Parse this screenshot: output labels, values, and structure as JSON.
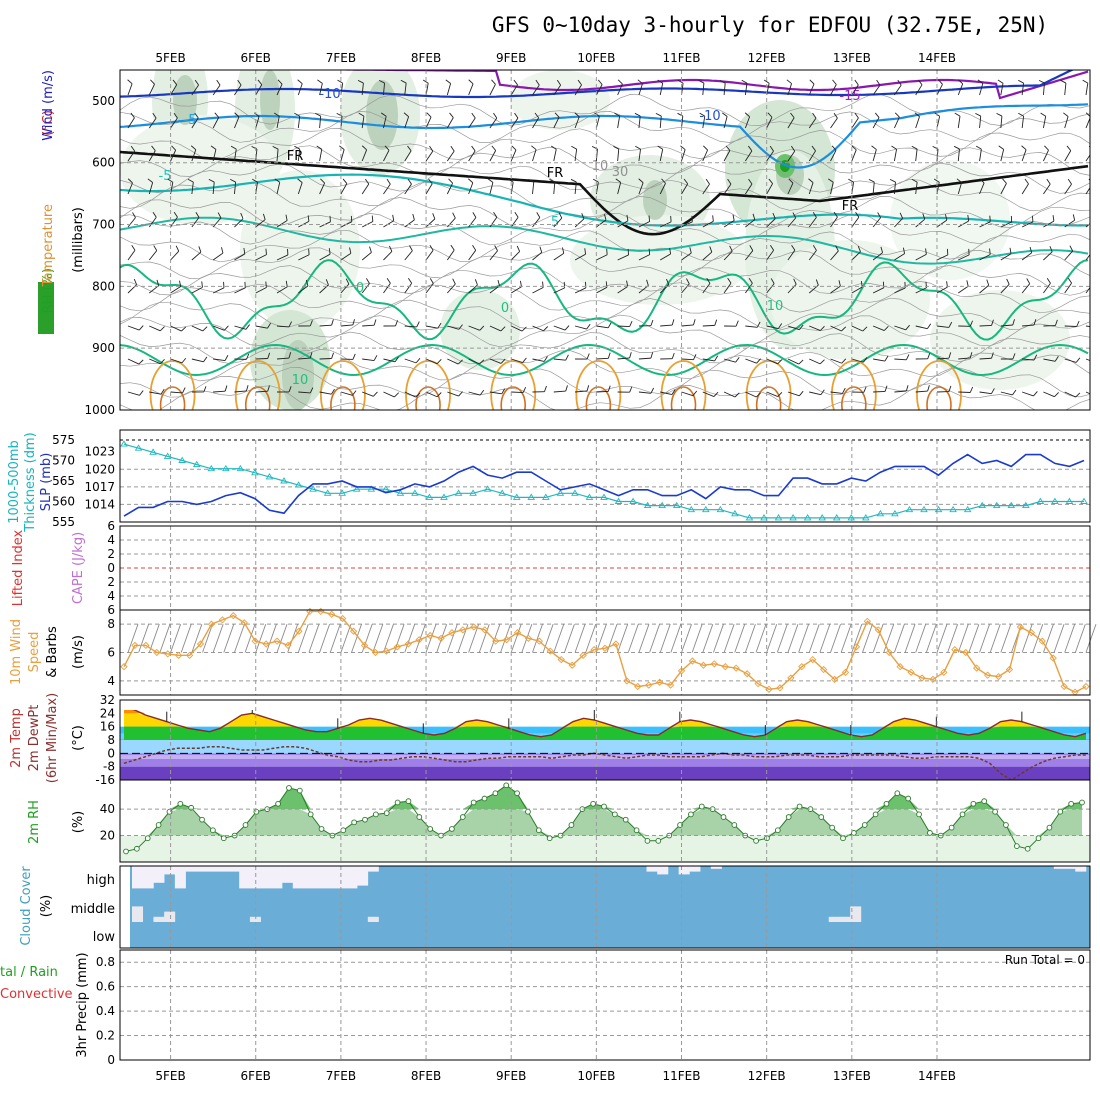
{
  "title": "GFS 0~10day 3-hourly for EDFOU (32.75E, 25N)",
  "chart_data": [
    {
      "type": "contour",
      "panel": "upper-air",
      "x_ticks": [
        "5FEB",
        "6FEB",
        "7FEB",
        "8FEB",
        "9FEB",
        "10FEB",
        "11FEB",
        "12FEB",
        "13FEB",
        "14FEB"
      ],
      "y_ticks": [
        "500",
        "600",
        "700",
        "800",
        "900",
        "1000"
      ],
      "ylim": [
        450,
        1000
      ],
      "ylabel_parts": [
        {
          "text": "RH (%)",
          "color": "#20a020"
        },
        {
          "text": "Temperature",
          "color": "#e09030"
        },
        {
          "text": "(°C)",
          "color": "#d02020"
        },
        {
          "text": "Wind (m/s)",
          "color": "#2020c0"
        }
      ],
      "ylabel_sub": "(millibars)",
      "rh_levels": [
        10,
        30,
        50,
        70,
        90
      ],
      "isotherm_labels": [
        {
          "text": "-15",
          "color": "#a020c0"
        },
        {
          "text": "-10",
          "color": "#2050d0"
        },
        {
          "text": "-10",
          "color": "#2050d0"
        },
        {
          "text": "-5",
          "color": "#20a0e0"
        },
        {
          "text": "-5",
          "color": "#20c0c0"
        },
        {
          "text": "5",
          "color": "#20c0c0"
        },
        {
          "text": "0",
          "color": "#20c080"
        },
        {
          "text": "0",
          "color": "#20c080"
        },
        {
          "text": "10",
          "color": "#20c080"
        },
        {
          "text": "10",
          "color": "#20c080"
        },
        {
          "text": "FR",
          "color": "#000000"
        },
        {
          "text": "FR",
          "color": "#000000"
        },
        {
          "text": "FR",
          "color": "#000000"
        },
        {
          "text": "30",
          "color": "#909090"
        },
        {
          "text": "10",
          "color": "#909090"
        }
      ]
    },
    {
      "type": "line",
      "panel": "thickness-slp",
      "ylabel_left": "1000-500mb Thickness (dm)",
      "ylabel_right": "SLP (mb)",
      "left_ticks": [
        "575",
        "570",
        "565",
        "560",
        "555"
      ],
      "right_ticks": [
        "1023",
        "1020",
        "1017",
        "1014"
      ],
      "thickness_dm": [
        574,
        573,
        572,
        571,
        570,
        569,
        568,
        568,
        568,
        567,
        566,
        565,
        564,
        563,
        562,
        562,
        563,
        563,
        563,
        562,
        562,
        561,
        561,
        562,
        562,
        563,
        562,
        561,
        561,
        561,
        562,
        562,
        561,
        561,
        560,
        560,
        559,
        559,
        559,
        558,
        558,
        558,
        557,
        556,
        556,
        556,
        556,
        556,
        556,
        556,
        556,
        556,
        557,
        557,
        558,
        558,
        558,
        558,
        558,
        559,
        559,
        559,
        559,
        560,
        560,
        560,
        560
      ],
      "slp_mb": [
        1012,
        1013.5,
        1013.5,
        1014.5,
        1014.5,
        1014,
        1014.5,
        1015.5,
        1016,
        1015,
        1013,
        1012.5,
        1015.5,
        1017.5,
        1017.5,
        1018,
        1017,
        1017,
        1016,
        1016.5,
        1017.5,
        1017,
        1018,
        1019.5,
        1020.5,
        1019,
        1018.5,
        1019.5,
        1019.5,
        1018,
        1016.5,
        1017,
        1017.5,
        1016.5,
        1015.5,
        1016.5,
        1016.5,
        1015.5,
        1015.5,
        1016.5,
        1015,
        1017,
        1016.5,
        1016.5,
        1015.5,
        1015.5,
        1018.5,
        1018.5,
        1017.5,
        1017.5,
        1018.5,
        1018,
        1019.5,
        1020.5,
        1020.5,
        1020.5,
        1019,
        1021,
        1022.5,
        1021,
        1021.5,
        1020.5,
        1022.5,
        1022.5,
        1021,
        1020.5,
        1021.5
      ]
    },
    {
      "type": "line",
      "panel": "lifted-index-cape",
      "ylabel": "Lifted Index",
      "ylabel2": "CAPE (J/kg)",
      "ticks": [
        "-6",
        "-4",
        "-2",
        "0",
        "2",
        "4",
        "6"
      ],
      "ylim": [
        -6,
        6
      ],
      "zero_line": 0
    },
    {
      "type": "line",
      "panel": "wind-10m",
      "ylabel": "10m Wind",
      "ylabel2": "Speed",
      "ylabel3": "& Barbs",
      "units": "(m/s)",
      "ticks": [
        "8",
        "6",
        "4"
      ],
      "ylim": [
        3,
        9
      ],
      "speed_ms": [
        5.0,
        6.5,
        6.5,
        6.0,
        5.9,
        5.8,
        5.8,
        6.6,
        8.0,
        8.3,
        8.6,
        8.1,
        6.8,
        6.6,
        6.8,
        6.5,
        7.5,
        8.9,
        8.9,
        8.7,
        8.4,
        7.5,
        6.5,
        6.0,
        6.1,
        6.4,
        6.6,
        6.9,
        7.2,
        7.0,
        7.4,
        7.6,
        7.8,
        7.6,
        6.8,
        6.9,
        7.4,
        7.0,
        6.8,
        6.1,
        5.5,
        5.1,
        5.8,
        6.2,
        6.3,
        6.6,
        4.0,
        3.6,
        3.7,
        3.9,
        3.7,
        4.7,
        5.4,
        5.1,
        5.2,
        5.0,
        4.9,
        4.5,
        3.8,
        3.4,
        3.5,
        4.2,
        5.0,
        5.5,
        4.8,
        4.1,
        4.6,
        6.4,
        8.2,
        7.6,
        6.0,
        5.0,
        4.6,
        4.2,
        4.1,
        4.6,
        6.2,
        6.0,
        4.9,
        4.4,
        4.3,
        4.8,
        7.8,
        7.4,
        6.8,
        5.6,
        3.6,
        3.2,
        3.6
      ],
      "ref_line_ms": 6.0
    },
    {
      "type": "area",
      "panel": "temp-dewpoint",
      "ylabel": "2m Temp",
      "ylabel2": "2m DewPt",
      "ylabel3": "(6hr Min/Max)",
      "units": "(°C)",
      "ticks": [
        "32",
        "24",
        "16",
        "8",
        "0",
        "-8",
        "-16"
      ],
      "ylim": [
        -16,
        32
      ],
      "temp_c": [
        28,
        26,
        23,
        21,
        19,
        17,
        15,
        14,
        13,
        15,
        19,
        23,
        24,
        22,
        20,
        18,
        16,
        14,
        13,
        13,
        15,
        17,
        20,
        21,
        20,
        18,
        16,
        14,
        12,
        11,
        12,
        15,
        19,
        20,
        19,
        17,
        15,
        13,
        11,
        10,
        11,
        15,
        19,
        21,
        20,
        18,
        16,
        14,
        12,
        11,
        11,
        15,
        19,
        20,
        19,
        17,
        15,
        13,
        11,
        10,
        11,
        15,
        19,
        20,
        19,
        17,
        15,
        13,
        11,
        10,
        11,
        15,
        19,
        21,
        20,
        18,
        16,
        14,
        12,
        11,
        12,
        15,
        19,
        20,
        19,
        17,
        15,
        13,
        11,
        10,
        12
      ],
      "dewpoint_c": [
        -6,
        -4,
        -2,
        0,
        2,
        3,
        3,
        3,
        4,
        4,
        3,
        2,
        2,
        2,
        3,
        4,
        4,
        3,
        1,
        -1,
        -2,
        -4,
        -5,
        -5,
        -4,
        -4,
        -3,
        -2,
        -2,
        -3,
        -4,
        -5,
        -5,
        -4,
        -3,
        -3,
        -2,
        -2,
        -2,
        -2,
        -3,
        -2,
        -1,
        -1,
        0,
        -1,
        -2,
        -3,
        -2,
        -1,
        -1,
        -2,
        -2,
        -2,
        -2,
        -1,
        0,
        -1,
        -1,
        -2,
        -2,
        -2,
        -1,
        -1,
        -1,
        -2,
        -2,
        -2,
        -1,
        -1,
        -1,
        -1,
        -1,
        -2,
        -3,
        -3,
        -2,
        -2,
        -2,
        -2,
        -3,
        -6,
        -12,
        -16,
        -12,
        -8,
        -5,
        -3,
        -2,
        -1,
        -1
      ]
    },
    {
      "type": "area",
      "panel": "relative-humidity",
      "ylabel": "2m RH",
      "units": "(%)",
      "ticks": [
        "40",
        "20"
      ],
      "ylim": [
        0,
        62
      ],
      "rh_pct": [
        8,
        10,
        18,
        28,
        38,
        44,
        41,
        32,
        24,
        18,
        20,
        28,
        38,
        40,
        44,
        56,
        54,
        36,
        25,
        20,
        24,
        30,
        32,
        36,
        37,
        45,
        46,
        34,
        25,
        20,
        25,
        34,
        45,
        48,
        52,
        58,
        52,
        38,
        24,
        18,
        20,
        28,
        40,
        44,
        42,
        36,
        32,
        24,
        16,
        16,
        20,
        28,
        36,
        42,
        40,
        34,
        28,
        20,
        16,
        18,
        24,
        34,
        42,
        40,
        34,
        26,
        18,
        22,
        28,
        36,
        44,
        52,
        48,
        36,
        22,
        20,
        26,
        36,
        44,
        46,
        38,
        28,
        12,
        10,
        18,
        26,
        38,
        44,
        45
      ]
    },
    {
      "type": "bar",
      "panel": "cloud-cover",
      "ylabel": "Cloud Cover",
      "units": "(%)",
      "levels": [
        "high",
        "middle",
        "low"
      ],
      "high_pct": [
        80,
        80,
        60,
        30,
        80,
        20,
        20,
        20,
        20,
        20,
        80,
        80,
        80,
        80,
        60,
        80,
        80,
        80,
        80,
        80,
        80,
        70,
        20,
        0,
        0,
        0,
        0,
        0,
        0,
        0,
        0,
        0,
        0,
        0,
        0,
        0,
        0,
        0,
        0,
        0,
        0,
        0,
        0,
        0,
        0,
        0,
        0,
        0,
        20,
        30,
        0,
        30,
        20,
        0,
        10,
        0,
        0,
        0,
        0,
        0,
        0,
        0,
        0,
        0,
        0,
        0,
        0,
        0,
        0,
        0,
        0,
        0,
        0,
        0,
        0,
        0,
        0,
        0,
        0,
        0,
        0,
        0,
        0,
        0,
        0,
        0,
        10,
        10,
        20
      ],
      "middle_pct": [
        60,
        0,
        20,
        40,
        0,
        0,
        0,
        0,
        0,
        0,
        0,
        20,
        0,
        0,
        0,
        0,
        0,
        0,
        0,
        0,
        0,
        0,
        20,
        0,
        0,
        0,
        0,
        0,
        0,
        0,
        0,
        0,
        0,
        0,
        0,
        0,
        0,
        0,
        0,
        0,
        0,
        0,
        0,
        0,
        0,
        0,
        0,
        0,
        0,
        0,
        0,
        0,
        0,
        0,
        0,
        0,
        0,
        0,
        0,
        0,
        0,
        0,
        0,
        0,
        0,
        20,
        20,
        60,
        0,
        0,
        0,
        0,
        0,
        0,
        0,
        0,
        0,
        0,
        0,
        0,
        0,
        0,
        0,
        0,
        0,
        0,
        0,
        0,
        0
      ],
      "low_pct": []
    },
    {
      "type": "bar",
      "panel": "precipitation",
      "ylabel": "3hr Precip (mm)",
      "legend_left_1": "tal / Rain",
      "legend_left_2": "Convective",
      "ticks": [
        "0.8",
        "0.6",
        "0.4",
        "0.2",
        "0"
      ],
      "ylim": [
        0,
        0.9
      ],
      "run_total": "Run Total = 0",
      "precip_mm": []
    }
  ]
}
